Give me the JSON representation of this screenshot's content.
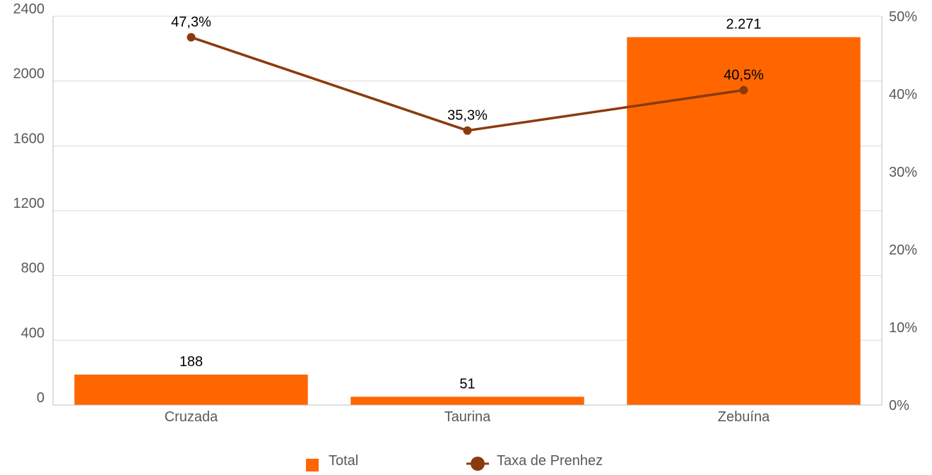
{
  "chart_data": {
    "type": "bar",
    "categories": [
      "Cruzada",
      "Taurina",
      "Zebuína"
    ],
    "series": [
      {
        "name": "Total",
        "type": "bar",
        "axis": "left",
        "values": [
          188,
          51,
          2271
        ],
        "labels": [
          "188",
          "51",
          "2.271"
        ],
        "color": "#FF6600"
      },
      {
        "name": "Taxa de Prenhez",
        "type": "line",
        "axis": "right",
        "values": [
          47.3,
          35.3,
          40.5
        ],
        "labels": [
          "47,3%",
          "35,3%",
          "40,5%"
        ],
        "color": "#8B3A0E"
      }
    ],
    "y_left": {
      "min": 0,
      "max": 2400,
      "ticks": [
        0,
        400,
        800,
        1200,
        1600,
        2000,
        2400
      ]
    },
    "y_right": {
      "min": 0,
      "max": 50,
      "ticks": [
        0,
        10,
        20,
        30,
        40,
        50
      ],
      "tick_labels": [
        "0%",
        "10%",
        "20%",
        "30%",
        "40%",
        "50%"
      ]
    },
    "grid": true,
    "legend": "bottom-center",
    "colors": {
      "grid": "#D9D9D9",
      "axis": "#BFBFBF"
    }
  }
}
